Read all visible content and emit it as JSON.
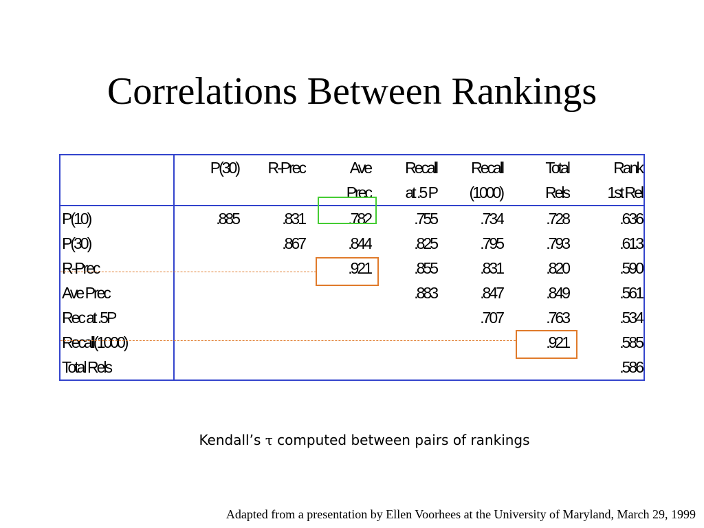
{
  "title": "Correlations Between Rankings",
  "table": {
    "columns": [
      {
        "line1": "P(30)",
        "line2": ""
      },
      {
        "line1": "R-Prec",
        "line2": ""
      },
      {
        "line1": "Ave",
        "line2": "Prec"
      },
      {
        "line1": "Recall",
        "line2": "at .5 P"
      },
      {
        "line1": "Recall",
        "line2": "(1000)"
      },
      {
        "line1": "Total",
        "line2": "Rels"
      },
      {
        "line1": "Rank",
        "line2": "1st Rel"
      }
    ],
    "rows": [
      {
        "label": "P(10)",
        "cells": [
          ".885",
          ".831",
          ".782",
          ".755",
          ".734",
          ".728",
          ".636"
        ]
      },
      {
        "label": "P(30)",
        "cells": [
          "",
          ".867",
          ".844",
          ".825",
          ".795",
          ".793",
          ".613"
        ]
      },
      {
        "label": "R-Prec",
        "cells": [
          "",
          "",
          ".921",
          ".855",
          ".831",
          ".820",
          ".590"
        ]
      },
      {
        "label": "Ave Prec",
        "cells": [
          "",
          "",
          "",
          ".883",
          ".847",
          ".849",
          ".561"
        ]
      },
      {
        "label": "Rec at .5P",
        "cells": [
          "",
          "",
          "",
          "",
          ".707",
          ".763",
          ".534"
        ]
      },
      {
        "label": "Recall(1000)",
        "cells": [
          "",
          "",
          "",
          "",
          "",
          ".921",
          ".585"
        ]
      },
      {
        "label": "Total Rels",
        "cells": [
          "",
          "",
          "",
          "",
          "",
          "",
          ".586"
        ]
      }
    ],
    "highlight_colors": {
      "green": "#44cc33",
      "orange": "#e07a2a",
      "border": "#3344cc"
    }
  },
  "caption": {
    "prefix": "Kendall’s ",
    "symbol": "τ",
    "suffix": " computed between pairs of rankings"
  },
  "footer": "Adapted from a presentation by Ellen Voorhees at the University of Maryland, March 29, 1999"
}
